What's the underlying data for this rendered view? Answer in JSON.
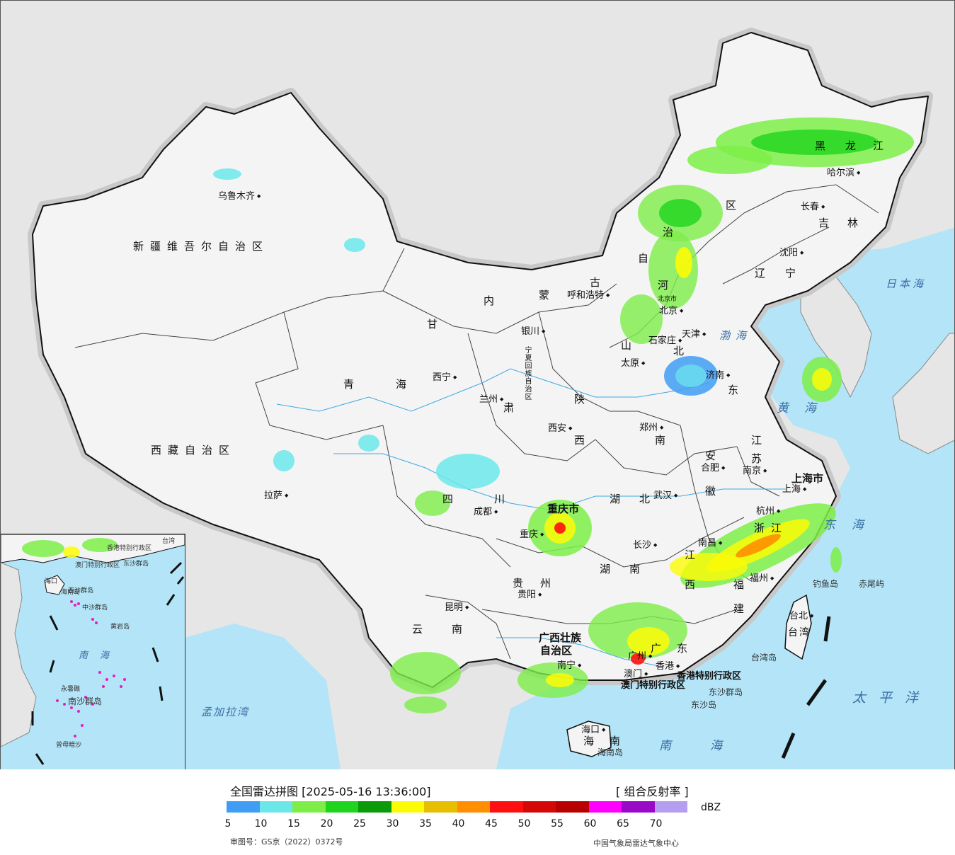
{
  "colors": {
    "ocean": "#b3e4f7",
    "foreign_land": "#e6e6e6",
    "china_land": "#f4f4f4",
    "border": "#111111",
    "province_border": "#444444",
    "river": "#3fa9e0"
  },
  "map": {
    "provinces": [
      "新疆维吾尔自治区",
      "西藏自治区",
      "青",
      "海",
      "甘",
      "肃",
      "内",
      "蒙",
      "古",
      "自",
      "治",
      "区",
      "宁夏回族自治区",
      "陕",
      "西",
      "山",
      "河",
      "南",
      "北",
      "东",
      "四",
      "川",
      "重庆市",
      "贵",
      "州",
      "云",
      "南",
      "湖",
      "北",
      "湖",
      "南",
      "广西壮族",
      "自治区",
      "广",
      "东",
      "江",
      "西",
      "福",
      "建",
      "浙",
      "江",
      "江",
      "苏",
      "安",
      "徽",
      "黑",
      "龙",
      "江",
      "吉",
      "林",
      "辽",
      "宁",
      "海",
      "南",
      "上海市",
      "台湾",
      "香港特别行政区",
      "澳门特别行政区"
    ],
    "capitals": [
      "乌鲁木齐",
      "拉萨",
      "西宁",
      "兰州",
      "银川",
      "呼和浩特",
      "北京市",
      "北京",
      "天津",
      "石家庄",
      "太原",
      "济南",
      "郑州",
      "西安",
      "成都",
      "重庆",
      "武汉",
      "合肥",
      "南京",
      "上海",
      "杭州",
      "南昌",
      "长沙",
      "贵阳",
      "昆明",
      "南宁",
      "广州",
      "香港",
      "澳门",
      "海口",
      "福州",
      "台北",
      "沈阳",
      "长春",
      "哈尔滨"
    ],
    "seas": [
      "日本海",
      "渤海",
      "黄",
      "海",
      "东",
      "海",
      "南",
      "海",
      "太平洋",
      "孟加拉湾"
    ],
    "islands": [
      "钓鱼岛",
      "赤尾屿",
      "台湾岛",
      "东沙群岛",
      "东沙岛",
      "海南岛"
    ]
  },
  "inset": {
    "labels": [
      "海口",
      "海南岛",
      "香港特别行政区",
      "澳门特别行政区",
      "东沙群岛",
      "西沙群岛",
      "中沙群岛",
      "黄岩岛",
      "南",
      "海",
      "永暑礁",
      "南沙群岛",
      "曾母暗沙",
      "台湾"
    ]
  },
  "legend": {
    "title": "全国雷达拼图 [2025-05-16 13:36:00]",
    "product": "[ 组合反射率 ]",
    "unit": "dBZ",
    "colors": [
      "#3f9ef3",
      "#6be7ea",
      "#7dee48",
      "#1ed41e",
      "#0a9a0a",
      "#fbfb06",
      "#e6c000",
      "#ff8f00",
      "#ff1010",
      "#d50808",
      "#b80000",
      "#ff00ff",
      "#9a08c8",
      "#b59ef0"
    ],
    "ticks": [
      "5",
      "10",
      "15",
      "20",
      "25",
      "30",
      "35",
      "40",
      "45",
      "50",
      "55",
      "60",
      "65",
      "70"
    ],
    "approval": "审图号：GS京（2022）0372号",
    "agency": "中国气象局雷达气象中心"
  }
}
